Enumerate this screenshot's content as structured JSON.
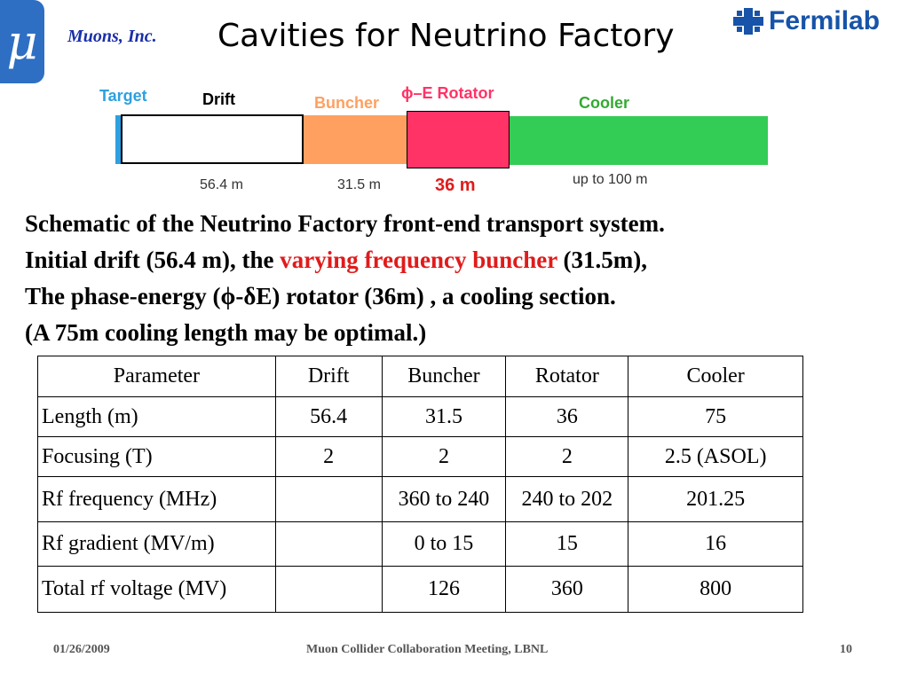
{
  "header": {
    "logo_glyph": "μ",
    "org_name": "Muons, Inc.",
    "title": "Cavities for Neutrino Factory",
    "fermilab_label": "Fermilab"
  },
  "schematic": {
    "segments": [
      {
        "label": "Target",
        "length": "",
        "color": "#2ea0e0"
      },
      {
        "label": "Drift",
        "length": "56.4 m",
        "color": "#ffffff"
      },
      {
        "label": "Buncher",
        "length": "31.5 m",
        "color": "#ffa060"
      },
      {
        "label": "ϕ–E Rotator",
        "length": "36 m",
        "color": "#ff3366"
      },
      {
        "label": "Cooler",
        "length": "up to 100 m",
        "color": "#33cc55"
      }
    ]
  },
  "description": {
    "line1": "Schematic of the Neutrino Factory front-end transport system.",
    "line2_a": "Initial drift (56.4 m),  the ",
    "line2_red": "varying frequency buncher",
    "line2_b": " (31.5m),",
    "line3": "The phase-energy (ϕ-δE) rotator (36m) , a cooling section.",
    "line4": "(A 75m cooling length may be optimal.)"
  },
  "table": {
    "headers": [
      "Parameter",
      "Drift",
      "Buncher",
      "Rotator",
      "Cooler"
    ],
    "rows": [
      [
        "Length (m)",
        "56.4",
        "31.5",
        "36",
        "75"
      ],
      [
        "Focusing (T)",
        "2",
        "2",
        "2",
        "2.5 (ASOL)"
      ],
      [
        "Rf frequency (MHz)",
        "",
        "360 to 240",
        "240 to 202",
        "201.25"
      ],
      [
        "Rf gradient (MV/m)",
        "",
        "0 to 15",
        "15",
        "16"
      ],
      [
        "Total rf voltage (MV)",
        "",
        "126",
        "360",
        "800"
      ]
    ]
  },
  "footer": {
    "date": "01/26/2009",
    "event": "Muon Collider  Collaboration Meeting,  LBNL",
    "page": "10"
  }
}
